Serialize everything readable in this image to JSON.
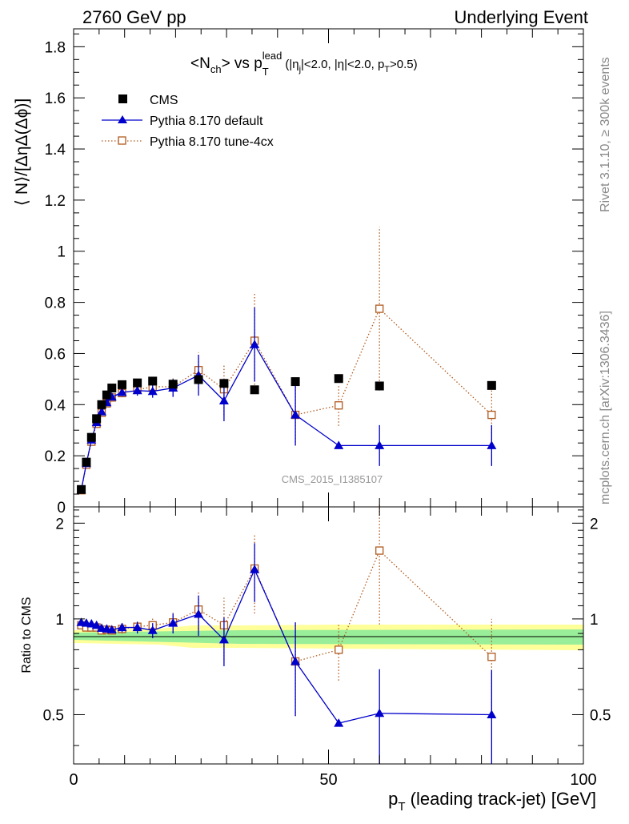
{
  "header": {
    "left": "2760 GeV pp",
    "right": "Underlying Event"
  },
  "side": {
    "rivet": "Rivet 3.1.10, ≥ 300k events",
    "mcplots": "mcplots.cern.ch [arXiv:1306.3436]"
  },
  "watermark": "CMS_2015_I1385107",
  "chart_data": {
    "type": "scatter",
    "title": {
      "main": "<N",
      "main_sub": "ch",
      "main_after": "> vs p",
      "main_sub2": "T",
      "main_sup": "lead",
      "cut_1": "(|η",
      "cut_1_sub": "j",
      "cut_2": "|<2.0, |η|<2.0, p",
      "cut_2_sub": "T",
      "cut_3": ">0.5)"
    },
    "xlabel": "p",
    "xlabel_sub": "T",
    "xlabel_rest": " (leading track-jet) [GeV]",
    "ylabel": "⟨ N⟩/[ΔηΔ(Δϕ)]",
    "ratio_ylabel": "Ratio to CMS",
    "xlim": [
      0,
      100
    ],
    "ylim": [
      0,
      1.87
    ],
    "ratio_ylim": [
      0.35,
      2.25
    ],
    "x_ticks": [
      "0",
      "50",
      "100"
    ],
    "y_ticks": [
      "0",
      "0.2",
      "0.4",
      "0.6",
      "0.8",
      "1",
      "1.2",
      "1.4",
      "1.6",
      "1.8"
    ],
    "ratio_ticks": [
      "0.5",
      "1",
      "2"
    ],
    "legend_position": "top-left",
    "series": [
      {
        "name": "CMS",
        "marker": "filled-square",
        "color": "#000000",
        "x": [
          1.5,
          2.5,
          3.5,
          4.5,
          5.5,
          6.5,
          7.5,
          9.5,
          12.5,
          15.5,
          19.5,
          24.5,
          29.5,
          35.5,
          43.5,
          52.0,
          60.0,
          82.0
        ],
        "y": [
          0.068,
          0.175,
          0.272,
          0.345,
          0.4,
          0.438,
          0.465,
          0.478,
          0.485,
          0.492,
          0.48,
          0.498,
          0.483,
          0.458,
          0.49,
          0.502,
          0.473,
          0.475
        ]
      },
      {
        "name": "Pythia 8.170 default",
        "marker": "filled-triangle",
        "color": "#0000cc",
        "x": [
          1.5,
          2.5,
          3.5,
          4.5,
          5.5,
          6.5,
          7.5,
          9.5,
          12.5,
          15.5,
          19.5,
          24.5,
          29.5,
          35.5,
          43.5,
          52.0,
          60.0,
          82.0
        ],
        "y": [
          0.066,
          0.17,
          0.262,
          0.33,
          0.372,
          0.408,
          0.43,
          0.448,
          0.455,
          0.452,
          0.465,
          0.515,
          0.415,
          0.635,
          0.36,
          0.24,
          0.24,
          0.24
        ],
        "err": [
          0.005,
          0.007,
          0.009,
          0.01,
          0.011,
          0.012,
          0.012,
          0.015,
          0.02,
          0.025,
          0.035,
          0.08,
          0.08,
          0.145,
          0.12,
          0.0,
          0.08,
          0.08
        ],
        "ratio": [
          0.975,
          0.97,
          0.965,
          0.955,
          0.935,
          0.93,
          0.925,
          0.94,
          0.94,
          0.92,
          0.97,
          1.035,
          0.86,
          1.43,
          0.735,
          0.47,
          0.505,
          0.5
        ],
        "ratio_err": [
          0.02,
          0.02,
          0.02,
          0.02,
          0.02,
          0.02,
          0.02,
          0.03,
          0.04,
          0.05,
          0.07,
          0.15,
          0.15,
          0.3,
          0.24,
          0.0,
          0.19,
          0.19
        ]
      },
      {
        "name": "Pythia 8.170 tune-4cx",
        "marker": "open-square",
        "color": "#b05a1e",
        "x": [
          1.5,
          2.5,
          3.5,
          4.5,
          5.5,
          6.5,
          7.5,
          9.5,
          12.5,
          15.5,
          19.5,
          24.5,
          29.5,
          35.5,
          43.5,
          52.0,
          60.0,
          82.0
        ],
        "y": [
          0.065,
          0.165,
          0.255,
          0.325,
          0.368,
          0.405,
          0.428,
          0.445,
          0.458,
          0.47,
          0.47,
          0.535,
          0.46,
          0.65,
          0.36,
          0.397,
          0.775,
          0.36
        ],
        "err": [
          0.005,
          0.007,
          0.009,
          0.01,
          0.011,
          0.012,
          0.012,
          0.015,
          0.02,
          0.025,
          0.035,
          0.07,
          0.1,
          0.185,
          0.12,
          0.08,
          0.32,
          0.11
        ],
        "ratio": [
          0.955,
          0.94,
          0.94,
          0.94,
          0.92,
          0.925,
          0.92,
          0.93,
          0.945,
          0.955,
          0.975,
          1.07,
          0.955,
          1.44,
          0.735,
          0.8,
          1.64,
          0.76
        ],
        "ratio_err": [
          0.02,
          0.02,
          0.02,
          0.02,
          0.02,
          0.02,
          0.02,
          0.03,
          0.04,
          0.05,
          0.07,
          0.14,
          0.21,
          0.4,
          0.24,
          0.16,
          0.68,
          0.24
        ]
      }
    ]
  }
}
